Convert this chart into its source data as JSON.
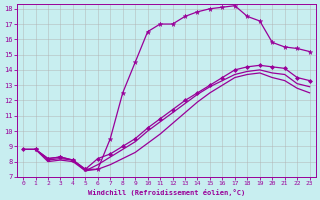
{
  "xlabel": "Windchill (Refroidissement éolien,°C)",
  "bg_color": "#c8eef0",
  "line_color": "#990099",
  "grid_color": "#b0b0b0",
  "xlim": [
    -0.5,
    23.5
  ],
  "ylim": [
    7,
    18.3
  ],
  "xticks": [
    0,
    1,
    2,
    3,
    4,
    5,
    6,
    7,
    8,
    9,
    10,
    11,
    12,
    13,
    14,
    15,
    16,
    17,
    18,
    19,
    20,
    21,
    22,
    23
  ],
  "yticks": [
    7,
    8,
    9,
    10,
    11,
    12,
    13,
    14,
    15,
    16,
    17,
    18
  ],
  "line1_x": [
    0,
    1,
    2,
    3,
    4,
    5,
    6,
    7,
    8,
    9,
    10,
    11,
    12,
    13,
    14,
    15,
    16,
    17,
    18,
    19,
    20,
    21,
    22,
    23
  ],
  "line1_y": [
    8.8,
    8.8,
    8.2,
    8.3,
    8.1,
    7.5,
    8.2,
    8.5,
    9.0,
    9.5,
    10.2,
    10.8,
    11.4,
    12.0,
    12.5,
    13.0,
    13.5,
    14.0,
    14.2,
    14.3,
    14.2,
    14.1,
    13.5,
    13.3
  ],
  "line2_x": [
    0,
    1,
    2,
    3,
    4,
    5,
    6,
    7,
    8,
    9,
    10,
    11,
    12,
    13,
    14,
    15,
    16,
    17,
    18,
    19,
    20,
    21,
    22,
    23
  ],
  "line2_y": [
    8.8,
    8.8,
    8.0,
    8.1,
    8.0,
    7.4,
    7.8,
    8.3,
    8.8,
    9.3,
    10.0,
    10.6,
    11.2,
    11.8,
    12.4,
    12.9,
    13.3,
    13.7,
    13.9,
    14.0,
    13.8,
    13.7,
    13.1,
    12.9
  ],
  "line3_x": [
    1,
    2,
    3,
    4,
    5,
    6,
    7,
    8,
    9,
    10,
    11,
    12,
    13,
    14,
    15,
    16,
    17,
    18,
    19,
    20,
    21,
    22,
    23
  ],
  "line3_y": [
    8.8,
    8.2,
    8.3,
    8.1,
    7.5,
    7.5,
    9.5,
    12.5,
    14.5,
    16.5,
    17.0,
    17.0,
    17.5,
    17.8,
    18.0,
    18.1,
    18.2,
    17.5,
    17.2,
    15.8,
    15.5,
    15.4,
    15.2
  ],
  "line4_x": [
    0,
    1,
    2,
    3,
    4,
    5,
    6,
    7,
    8,
    9,
    10,
    11,
    12,
    13,
    14,
    15,
    16,
    17,
    18,
    19,
    20,
    21,
    22,
    23
  ],
  "line4_y": [
    8.8,
    8.8,
    8.1,
    8.2,
    8.1,
    7.4,
    7.5,
    7.8,
    8.2,
    8.6,
    9.2,
    9.8,
    10.5,
    11.2,
    11.9,
    12.5,
    13.0,
    13.5,
    13.7,
    13.8,
    13.5,
    13.3,
    12.8,
    12.5
  ]
}
